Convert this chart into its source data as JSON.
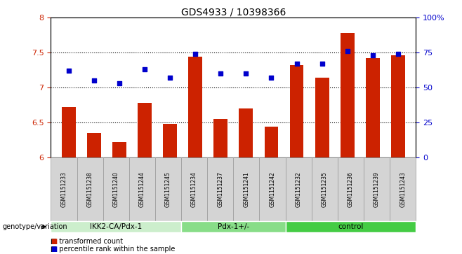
{
  "title": "GDS4933 / 10398366",
  "samples": [
    "GSM1151233",
    "GSM1151238",
    "GSM1151240",
    "GSM1151244",
    "GSM1151245",
    "GSM1151234",
    "GSM1151237",
    "GSM1151241",
    "GSM1151242",
    "GSM1151232",
    "GSM1151235",
    "GSM1151236",
    "GSM1151239",
    "GSM1151243"
  ],
  "bar_values": [
    6.72,
    6.35,
    6.22,
    6.78,
    6.48,
    7.44,
    6.55,
    6.7,
    6.44,
    7.32,
    7.14,
    7.78,
    7.42,
    7.46
  ],
  "dot_values_pct": [
    62,
    55,
    53,
    63,
    57,
    74,
    60,
    60,
    57,
    67,
    67,
    76,
    73,
    74
  ],
  "bar_color": "#cc2200",
  "dot_color": "#0000cc",
  "ylim_left": [
    6.0,
    8.0
  ],
  "ylim_right": [
    0,
    100
  ],
  "yticks_left": [
    6.0,
    6.5,
    7.0,
    7.5,
    8.0
  ],
  "ytick_labels_left": [
    "6",
    "6.5",
    "7",
    "7.5",
    "8"
  ],
  "yticks_right": [
    0,
    25,
    50,
    75,
    100
  ],
  "ytick_labels_right": [
    "0",
    "25",
    "50",
    "75",
    "100%"
  ],
  "gridlines_at": [
    6.5,
    7.0,
    7.5
  ],
  "groups": [
    {
      "label": "IKK2-CA/Pdx-1",
      "start": 0,
      "end": 5,
      "color": "#cceecc"
    },
    {
      "label": "Pdx-1+/-",
      "start": 5,
      "end": 9,
      "color": "#88dd88"
    },
    {
      "label": "control",
      "start": 9,
      "end": 14,
      "color": "#44cc44"
    }
  ],
  "legend_bar": "transformed count",
  "legend_dot": "percentile rank within the sample",
  "genotype_label": "genotype/variation",
  "tick_label_color_left": "#cc2200",
  "tick_label_color_right": "#0000cc",
  "bar_width": 0.55,
  "sample_box_color": "#d4d4d4",
  "sample_box_edge": "#999999"
}
